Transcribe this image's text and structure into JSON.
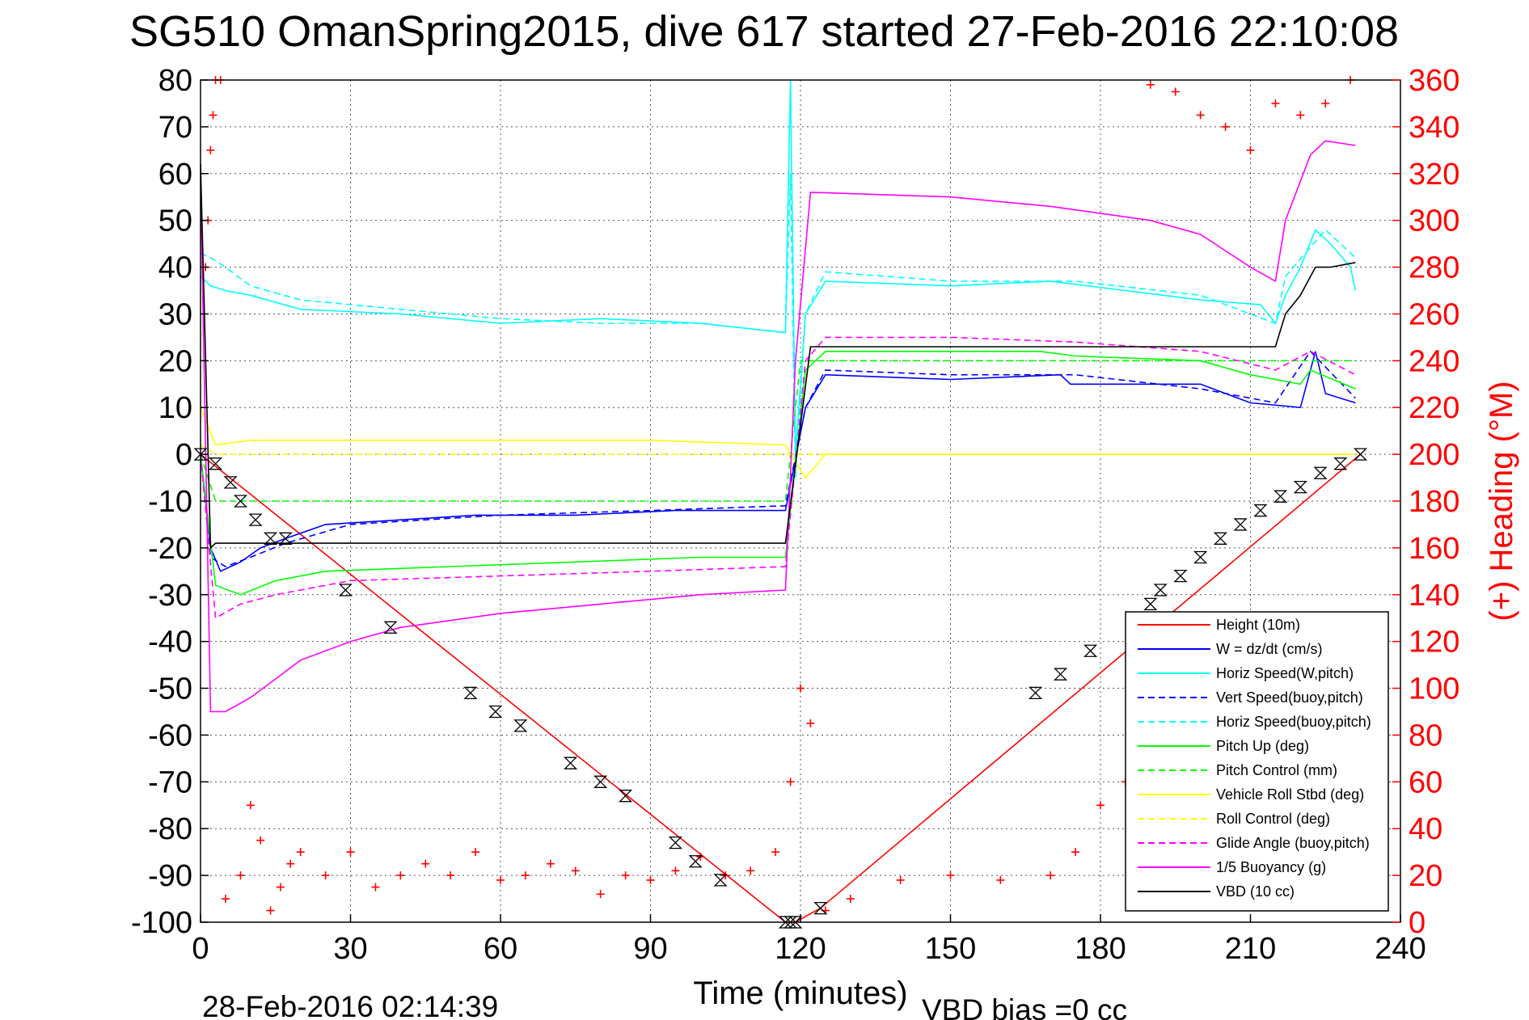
{
  "chart_data": {
    "type": "line",
    "title": "SG510 OmanSpring2015, dive 617 started 27-Feb-2016 22:10:08",
    "xlabel": "Time (minutes)",
    "ylabel_right": "(+) Heading (°M)",
    "xlim": [
      0,
      240
    ],
    "ylim": [
      -100,
      80
    ],
    "ylim_right": [
      0,
      360
    ],
    "x_ticks": [
      "0",
      "30",
      "60",
      "90",
      "120",
      "150",
      "180",
      "210",
      "240"
    ],
    "y_ticks": [
      "80",
      "70",
      "60",
      "50",
      "40",
      "30",
      "20",
      "10",
      "0",
      "-10",
      "-20",
      "-30",
      "-40",
      "-50",
      "-60",
      "-70",
      "-80",
      "-90",
      "-100"
    ],
    "y_right_ticks": [
      "360",
      "340",
      "320",
      "300",
      "280",
      "260",
      "240",
      "220",
      "200",
      "180",
      "160",
      "140",
      "120",
      "100",
      "80",
      "60",
      "40",
      "20",
      "0"
    ],
    "grid": true,
    "legend_position": "bottom-right",
    "footer_left": "28-Feb-2016 02:14:39",
    "footer_right": "VBD bias =0 cc",
    "colors": {
      "red": "#ff0000",
      "blue": "#0000ff",
      "cyan": "#00ffff",
      "green": "#00ff00",
      "yellow": "#ffff00",
      "magenta": "#ff00ff",
      "black": "#000000"
    },
    "series": [
      {
        "name": "Height (10m)",
        "color": "#ff0000",
        "dash": false,
        "x": [
          0,
          117,
          119,
          124,
          232
        ],
        "y": [
          0,
          -100,
          -100,
          -97,
          0
        ]
      },
      {
        "name": "W = dz/dt (cm/s)",
        "color": "#0000ff",
        "dash": false,
        "x": [
          0,
          2,
          4,
          8,
          12,
          17,
          25,
          40,
          55,
          75,
          95,
          117,
          121,
          125,
          150,
          172,
          174,
          200,
          210,
          220,
          223,
          225,
          231
        ],
        "y": [
          0,
          -20,
          -25,
          -23,
          -20,
          -18,
          -15,
          -14,
          -13,
          -13,
          -12,
          -12,
          10,
          17,
          16,
          17,
          15,
          15,
          11,
          10,
          22,
          13,
          11
        ]
      },
      {
        "name": "Horiz Speed(W,pitch)",
        "color": "#00ffff",
        "dash": false,
        "x": [
          0,
          2,
          5,
          10,
          20,
          40,
          60,
          80,
          100,
          117,
          118,
          119,
          121,
          125,
          150,
          170,
          185,
          200,
          212,
          215,
          217,
          220,
          223,
          226,
          230,
          231
        ],
        "y": [
          38,
          36,
          35,
          34,
          31,
          30,
          28,
          29,
          28,
          26,
          80,
          0,
          30,
          37,
          36,
          37,
          35,
          33,
          32,
          28,
          34,
          40,
          48,
          45,
          40,
          35
        ]
      },
      {
        "name": "Vert Speed(buoy,pitch)",
        "color": "#0000ff",
        "dash": true,
        "x": [
          0,
          2,
          5,
          10,
          17,
          30,
          60,
          90,
          117,
          121,
          125,
          150,
          175,
          200,
          215,
          222,
          231
        ],
        "y": [
          0,
          -22,
          -24,
          -22,
          -19,
          -15,
          -13,
          -12,
          -11,
          10,
          18,
          17,
          17,
          14,
          11,
          22,
          12
        ]
      },
      {
        "name": "Horiz Speed(buoy,pitch)",
        "color": "#00ffff",
        "dash": true,
        "x": [
          0,
          2,
          5,
          10,
          20,
          40,
          60,
          80,
          100,
          117,
          118,
          119,
          121,
          125,
          150,
          175,
          200,
          215,
          217,
          225,
          231
        ],
        "y": [
          43,
          42,
          40,
          36,
          33,
          31,
          29,
          28,
          28,
          26,
          60,
          -5,
          30,
          39,
          37,
          37,
          34,
          28,
          38,
          48,
          42
        ]
      },
      {
        "name": "Pitch Up (deg)",
        "color": "#00ff00",
        "dash": false,
        "x": [
          0,
          3,
          8,
          15,
          25,
          50,
          75,
          100,
          117,
          121,
          125,
          150,
          168,
          175,
          200,
          210,
          220,
          222,
          231
        ],
        "y": [
          0,
          -28,
          -30,
          -27,
          -25,
          -24,
          -23,
          -22,
          -22,
          18,
          22,
          22,
          22,
          21,
          20,
          17,
          15,
          18,
          14
        ]
      },
      {
        "name": "Pitch Control (mm)",
        "color": "#00ff00",
        "dash": true,
        "x": [
          0,
          3,
          5,
          30,
          60,
          90,
          117,
          120,
          125,
          150,
          180,
          210,
          231
        ],
        "y": [
          0,
          -10,
          -10,
          -10,
          -10,
          -10,
          -10,
          20,
          20,
          20,
          20,
          20,
          20
        ]
      },
      {
        "name": "Vehicle Roll Stbd (deg)",
        "color": "#ffff00",
        "dash": false,
        "x": [
          0,
          3,
          10,
          30,
          60,
          90,
          117,
          118,
          121,
          125,
          150,
          172,
          180,
          210,
          231
        ],
        "y": [
          10,
          2,
          3,
          3,
          3,
          3,
          2,
          0,
          -5,
          0,
          0,
          0,
          0,
          0,
          0
        ]
      },
      {
        "name": "Roll Control (deg)",
        "color": "#ffff00",
        "dash": true,
        "x": [
          0,
          3,
          30,
          60,
          90,
          117,
          120,
          125,
          150,
          180,
          210,
          231
        ],
        "y": [
          2,
          0,
          0,
          0,
          0,
          0,
          0,
          0,
          0,
          0,
          0,
          0
        ]
      },
      {
        "name": "Glide Angle (buoy,pitch)",
        "color": "#ff00ff",
        "dash": true,
        "x": [
          0,
          3,
          8,
          15,
          30,
          60,
          90,
          117,
          121,
          125,
          150,
          175,
          200,
          215,
          222,
          231
        ],
        "y": [
          0,
          -35,
          -32,
          -30,
          -27,
          -26,
          -25,
          -24,
          20,
          25,
          25,
          24,
          22,
          18,
          22,
          17
        ]
      },
      {
        "name": "1/5 Buoyancy (g)",
        "color": "#ff00ff",
        "dash": false,
        "x": [
          0,
          2,
          5,
          10,
          15,
          20,
          30,
          40,
          60,
          80,
          100,
          117,
          119,
          122,
          150,
          170,
          190,
          200,
          210,
          215,
          217,
          222,
          225,
          231
        ],
        "y": [
          60,
          -55,
          -55,
          -52,
          -48,
          -44,
          -40,
          -37,
          -34,
          -32,
          -30,
          -29,
          20,
          56,
          55,
          53,
          50,
          47,
          40,
          37,
          50,
          64,
          67,
          66
        ]
      },
      {
        "name": "VBD (10 cc)",
        "color": "#000000",
        "dash": false,
        "x": [
          0,
          2,
          3,
          10,
          20,
          40,
          60,
          80,
          100,
          117,
          122,
          125,
          150,
          180,
          200,
          215,
          217,
          220,
          223,
          226,
          231
        ],
        "y": [
          62,
          -20,
          -19,
          -19,
          -19,
          -19,
          -19,
          -19,
          -19,
          -19,
          23,
          23,
          23,
          23,
          23,
          23,
          30,
          34,
          40,
          40,
          41
        ]
      }
    ],
    "heading_markers": {
      "name": "(+) Heading",
      "color": "#ff0000",
      "x": [
        1,
        1.5,
        2,
        2.5,
        3,
        4,
        5,
        8,
        10,
        12,
        14,
        16,
        18,
        20,
        25,
        30,
        35,
        40,
        45,
        50,
        55,
        60,
        65,
        70,
        75,
        80,
        85,
        90,
        95,
        100,
        105,
        110,
        115,
        118,
        120,
        122,
        125,
        130,
        140,
        150,
        160,
        170,
        175,
        180,
        185,
        190,
        195,
        200,
        205,
        210,
        215,
        220,
        225,
        230
      ],
      "y": [
        280,
        300,
        330,
        345,
        360,
        360,
        10,
        20,
        50,
        35,
        5,
        15,
        25,
        30,
        20,
        30,
        15,
        20,
        25,
        20,
        30,
        18,
        20,
        25,
        22,
        12,
        20,
        18,
        22,
        28,
        20,
        22,
        30,
        60,
        100,
        85,
        5,
        10,
        18,
        20,
        18,
        20,
        30,
        50,
        60,
        358,
        355,
        345,
        340,
        330,
        350,
        345,
        350,
        360
      ]
    },
    "dive_markers": {
      "name": "markers",
      "color": "#000000",
      "x": [
        0,
        3,
        6,
        8,
        11,
        14,
        17,
        29,
        38,
        54,
        59,
        64,
        74,
        80,
        85,
        95,
        99,
        104,
        117,
        118,
        119,
        124,
        167,
        172,
        178,
        190,
        192,
        196,
        200,
        204,
        208,
        212,
        216,
        220,
        224,
        228,
        232
      ],
      "y": [
        0,
        -2,
        -6,
        -10,
        -14,
        -18,
        -18,
        -29,
        -37,
        -51,
        -55,
        -58,
        -66,
        -70,
        -73,
        -83,
        -87,
        -91,
        -100,
        -100,
        -100,
        -97,
        -51,
        -47,
        -42,
        -32,
        -29,
        -26,
        -22,
        -18,
        -15,
        -12,
        -9,
        -7,
        -4,
        -2,
        0
      ]
    }
  }
}
